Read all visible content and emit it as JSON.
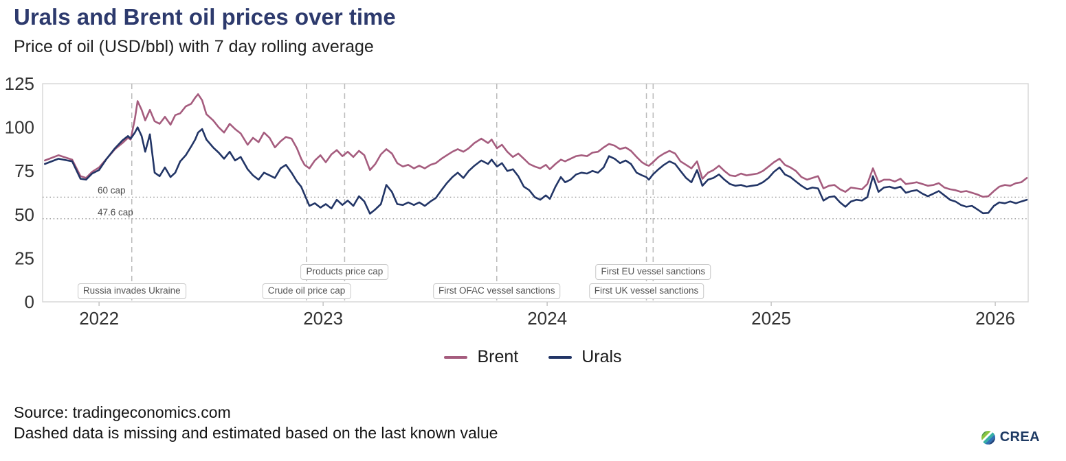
{
  "header": {
    "title": "Urals and Brent oil prices over time",
    "subtitle": "Price of oil (USD/bbl) with 7 day rolling average"
  },
  "footer": {
    "source": "Source: tradingeconomics.com",
    "note": "Dashed data is missing and estimated based on the last known value",
    "logo_text": "CREA"
  },
  "legend": [
    {
      "label": "Brent",
      "color": "#a55c7e"
    },
    {
      "label": "Urals",
      "color": "#223566"
    }
  ],
  "colors": {
    "title": "#2d3a6d",
    "brent": "#a55c7e",
    "urals": "#223566",
    "event_line": "#bbbbbb",
    "cap_line": "#8f8f8f",
    "axis_text": "#333333",
    "plot_border": "#d6d6d6"
  },
  "chart_data": {
    "type": "line",
    "title": "Urals and Brent oil prices over time",
    "subtitle": "Price of oil (USD/bbl) with 7 day rolling average",
    "xlabel": "",
    "ylabel": "",
    "x_unit": "decimal_year",
    "xlim": [
      2021.748,
      2026.147
    ],
    "ylim": [
      0,
      125
    ],
    "y_ticks": [
      0,
      25,
      50,
      75,
      100,
      125
    ],
    "x_ticks": [
      2022,
      2023,
      2024,
      2025,
      2026
    ],
    "grid": false,
    "legend_position": "bottom",
    "hlines": [
      {
        "label": "60 cap",
        "y": 60
      },
      {
        "label": "47.6 cap",
        "y": 47.6
      }
    ],
    "events": [
      {
        "label": "Russia invades Ukraine",
        "x": 2022.146,
        "row": "bottom"
      },
      {
        "label": "Crude oil price cap",
        "x": 2022.926,
        "row": "bottom"
      },
      {
        "label": "Products price cap",
        "x": 2023.096,
        "row": "top"
      },
      {
        "label": "First OFAC vessel sanctions",
        "x": 2023.775,
        "row": "bottom"
      },
      {
        "label": "First UK vessel sanctions",
        "x": 2024.443,
        "row": "bottom"
      },
      {
        "label": "First EU vessel sanctions",
        "x": 2024.473,
        "row": "top"
      }
    ],
    "series": [
      {
        "name": "Brent",
        "color": "#a55c7e",
        "column": 1
      },
      {
        "name": "Urals",
        "color": "#223566",
        "column": 2
      }
    ],
    "points": [
      [
        2021.758,
        81,
        79
      ],
      [
        2021.819,
        84,
        82
      ],
      [
        2021.88,
        81.5,
        80.5
      ],
      [
        2021.917,
        72,
        70.5
      ],
      [
        2021.942,
        71,
        70
      ],
      [
        2021.969,
        74.5,
        73.5
      ],
      [
        2022.0,
        77,
        75.5
      ],
      [
        2022.034,
        82,
        82
      ],
      [
        2022.071,
        87.5,
        88
      ],
      [
        2022.104,
        91,
        92.5
      ],
      [
        2022.129,
        94,
        95
      ],
      [
        2022.141,
        93,
        93.5
      ],
      [
        2022.16,
        105,
        97
      ],
      [
        2022.172,
        115,
        100
      ],
      [
        2022.19,
        110,
        95
      ],
      [
        2022.206,
        104,
        86
      ],
      [
        2022.227,
        110,
        96
      ],
      [
        2022.248,
        103.5,
        74
      ],
      [
        2022.27,
        102,
        72
      ],
      [
        2022.294,
        106,
        77
      ],
      [
        2022.319,
        101.5,
        71.5
      ],
      [
        2022.34,
        107,
        74
      ],
      [
        2022.362,
        108,
        80.5
      ],
      [
        2022.387,
        112,
        84
      ],
      [
        2022.411,
        113.5,
        89
      ],
      [
        2022.429,
        117,
        93
      ],
      [
        2022.442,
        119,
        97
      ],
      [
        2022.46,
        115.5,
        99
      ],
      [
        2022.479,
        107.5,
        93
      ],
      [
        2022.509,
        104,
        88.5
      ],
      [
        2022.534,
        100,
        85.5
      ],
      [
        2022.558,
        97,
        82
      ],
      [
        2022.583,
        102,
        86
      ],
      [
        2022.607,
        99,
        81
      ],
      [
        2022.632,
        96.5,
        83
      ],
      [
        2022.663,
        90,
        76
      ],
      [
        2022.687,
        94,
        72.5
      ],
      [
        2022.712,
        91.5,
        70
      ],
      [
        2022.736,
        97,
        74
      ],
      [
        2022.761,
        94,
        72.5
      ],
      [
        2022.785,
        88.5,
        71
      ],
      [
        2022.81,
        92,
        76.5
      ],
      [
        2022.834,
        94.5,
        78.5
      ],
      [
        2022.859,
        93.5,
        74
      ],
      [
        2022.883,
        88,
        69
      ],
      [
        2022.902,
        82,
        66
      ],
      [
        2022.917,
        78.5,
        61.5
      ],
      [
        2022.939,
        76.5,
        55
      ],
      [
        2022.963,
        81,
        56.5
      ],
      [
        2022.988,
        84,
        54
      ],
      [
        2023.012,
        80,
        56
      ],
      [
        2023.037,
        84.5,
        53.5
      ],
      [
        2023.061,
        87,
        58.5
      ],
      [
        2023.086,
        83.5,
        55.5
      ],
      [
        2023.11,
        86,
        58
      ],
      [
        2023.135,
        83,
        55
      ],
      [
        2023.16,
        86.5,
        60.5
      ],
      [
        2023.184,
        84,
        57.5
      ],
      [
        2023.209,
        75.5,
        50.5
      ],
      [
        2023.233,
        79,
        53
      ],
      [
        2023.258,
        84.5,
        56
      ],
      [
        2023.282,
        87.5,
        67
      ],
      [
        2023.307,
        85,
        63
      ],
      [
        2023.331,
        79.5,
        56
      ],
      [
        2023.356,
        77.5,
        55.5
      ],
      [
        2023.38,
        78.5,
        57
      ],
      [
        2023.405,
        76.5,
        55.5
      ],
      [
        2023.429,
        78,
        57
      ],
      [
        2023.454,
        76.5,
        55
      ],
      [
        2023.479,
        78.5,
        57.5
      ],
      [
        2023.503,
        79.5,
        59.5
      ],
      [
        2023.528,
        82,
        64
      ],
      [
        2023.552,
        84,
        68
      ],
      [
        2023.577,
        86,
        71.5
      ],
      [
        2023.601,
        87.5,
        74
      ],
      [
        2023.626,
        86,
        71
      ],
      [
        2023.65,
        88,
        75
      ],
      [
        2023.675,
        91,
        78
      ],
      [
        2023.706,
        93.5,
        81
      ],
      [
        2023.736,
        91,
        79
      ],
      [
        2023.752,
        93,
        81.5
      ],
      [
        2023.776,
        88,
        77.5
      ],
      [
        2023.798,
        90,
        79.5
      ],
      [
        2023.822,
        86,
        75
      ],
      [
        2023.847,
        83,
        76
      ],
      [
        2023.871,
        85,
        72
      ],
      [
        2023.896,
        82,
        66
      ],
      [
        2023.92,
        79,
        64
      ],
      [
        2023.945,
        77.5,
        60
      ],
      [
        2023.969,
        76.5,
        58.5
      ],
      [
        2023.994,
        78.5,
        61
      ],
      [
        2024.012,
        76,
        59
      ],
      [
        2024.037,
        79,
        66
      ],
      [
        2024.061,
        81.5,
        71.5
      ],
      [
        2024.08,
        80.5,
        68.5
      ],
      [
        2024.104,
        82,
        70
      ],
      [
        2024.129,
        83.5,
        73
      ],
      [
        2024.153,
        84,
        74
      ],
      [
        2024.178,
        83.5,
        73.5
      ],
      [
        2024.202,
        85.5,
        75
      ],
      [
        2024.227,
        86,
        74
      ],
      [
        2024.252,
        88.5,
        77
      ],
      [
        2024.276,
        90.5,
        83.5
      ],
      [
        2024.301,
        89.5,
        82
      ],
      [
        2024.325,
        87.5,
        79.5
      ],
      [
        2024.35,
        88.5,
        81
      ],
      [
        2024.374,
        86.5,
        79
      ],
      [
        2024.399,
        83,
        74
      ],
      [
        2024.423,
        80,
        72.5
      ],
      [
        2024.442,
        78.5,
        71.5
      ],
      [
        2024.454,
        78,
        70
      ],
      [
        2024.472,
        80,
        73
      ],
      [
        2024.497,
        83,
        76
      ],
      [
        2024.521,
        85,
        78.5
      ],
      [
        2024.546,
        86.5,
        80.5
      ],
      [
        2024.571,
        85,
        79
      ],
      [
        2024.595,
        80.5,
        75
      ],
      [
        2024.62,
        78.5,
        71
      ],
      [
        2024.644,
        76.5,
        68.5
      ],
      [
        2024.669,
        80.5,
        75.5
      ],
      [
        2024.693,
        70.5,
        66.5
      ],
      [
        2024.718,
        74,
        70
      ],
      [
        2024.742,
        75.5,
        71
      ],
      [
        2024.767,
        78,
        73
      ],
      [
        2024.791,
        75,
        70
      ],
      [
        2024.816,
        72.5,
        67.5
      ],
      [
        2024.84,
        72,
        66.5
      ],
      [
        2024.865,
        73.5,
        67
      ],
      [
        2024.89,
        72.5,
        66
      ],
      [
        2024.914,
        73,
        66.5
      ],
      [
        2024.939,
        73.5,
        67
      ],
      [
        2024.963,
        75,
        68.5
      ],
      [
        2024.988,
        77.5,
        71
      ],
      [
        2025.012,
        80,
        74.5
      ],
      [
        2025.037,
        82,
        77
      ],
      [
        2025.061,
        78.5,
        73
      ],
      [
        2025.086,
        77,
        71.5
      ],
      [
        2025.11,
        75,
        69
      ],
      [
        2025.135,
        71.5,
        66.5
      ],
      [
        2025.16,
        70,
        64.5
      ],
      [
        2025.184,
        71,
        65.5
      ],
      [
        2025.209,
        72,
        65
      ],
      [
        2025.233,
        65,
        58
      ],
      [
        2025.258,
        66.5,
        60
      ],
      [
        2025.282,
        67,
        60.5
      ],
      [
        2025.307,
        64.5,
        57
      ],
      [
        2025.331,
        63,
        54.5
      ],
      [
        2025.356,
        65.5,
        57.5
      ],
      [
        2025.38,
        65,
        58.5
      ],
      [
        2025.405,
        64.5,
        58
      ],
      [
        2025.429,
        67.5,
        60
      ],
      [
        2025.454,
        76.5,
        72
      ],
      [
        2025.479,
        68.5,
        63
      ],
      [
        2025.503,
        70,
        65.5
      ],
      [
        2025.528,
        70,
        66
      ],
      [
        2025.552,
        69,
        65
      ],
      [
        2025.577,
        70.5,
        66
      ],
      [
        2025.601,
        67.5,
        62.5
      ],
      [
        2025.626,
        68,
        63.5
      ],
      [
        2025.65,
        68.5,
        64
      ],
      [
        2025.675,
        67.5,
        62
      ],
      [
        2025.699,
        66.5,
        60.5
      ],
      [
        2025.724,
        67,
        62
      ],
      [
        2025.748,
        68,
        63.5
      ],
      [
        2025.773,
        65.5,
        61
      ],
      [
        2025.798,
        64.5,
        58.5
      ],
      [
        2025.822,
        64,
        57.5
      ],
      [
        2025.847,
        63,
        55.5
      ],
      [
        2025.871,
        63.5,
        54.5
      ],
      [
        2025.896,
        62.5,
        55
      ],
      [
        2025.92,
        61.5,
        53
      ],
      [
        2025.945,
        60.2,
        50.8
      ],
      [
        2025.969,
        60.5,
        51
      ],
      [
        2025.994,
        63.5,
        55
      ],
      [
        2026.018,
        66,
        57
      ],
      [
        2026.043,
        67,
        56.5
      ],
      [
        2026.067,
        66.5,
        57.5
      ],
      [
        2026.092,
        68,
        56.5
      ],
      [
        2026.116,
        68.5,
        57.5
      ],
      [
        2026.141,
        71,
        58.5
      ]
    ]
  }
}
